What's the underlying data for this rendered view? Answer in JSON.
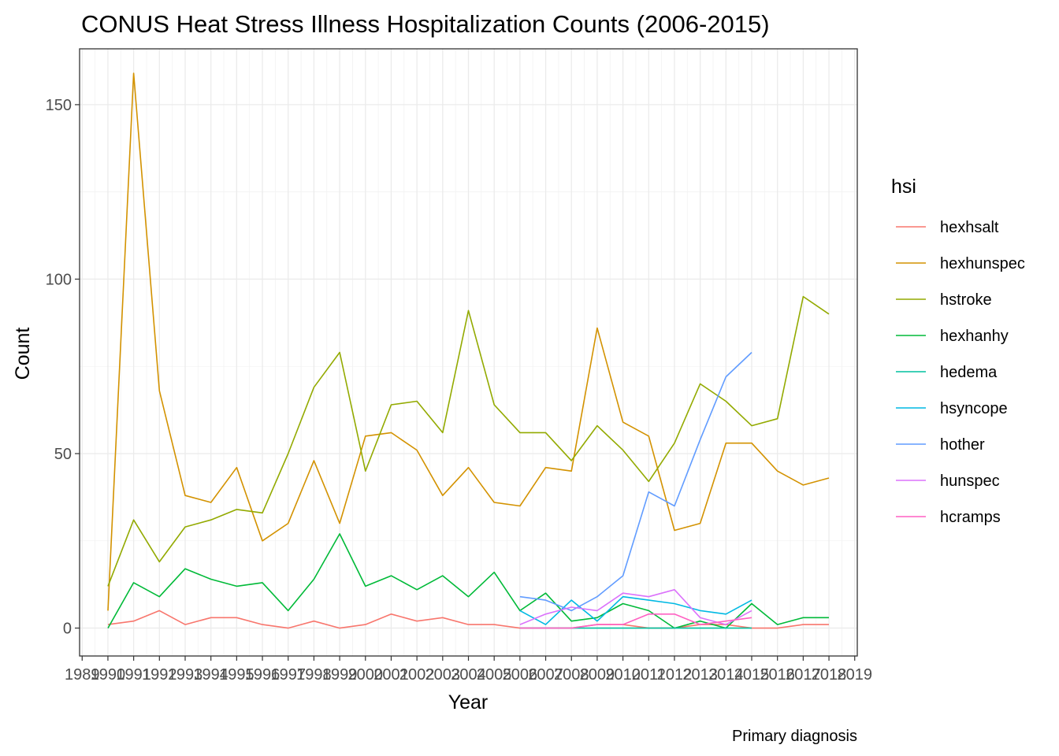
{
  "chart_data": {
    "type": "line",
    "title": "CONUS Heat Stress Illness Hospitalization Counts (2006-2015)",
    "xlabel": "Year",
    "ylabel": "Count",
    "caption": "Primary diagnosis",
    "legend_title": "hsi",
    "legend_position": "right",
    "grid": true,
    "xlim": [
      1988.9,
      2019.1
    ],
    "ylim": [
      -8,
      166
    ],
    "x_ticks": [
      1989,
      1990,
      1991,
      1992,
      1993,
      1994,
      1995,
      1996,
      1997,
      1998,
      1999,
      2000,
      2001,
      2002,
      2003,
      2004,
      2005,
      2006,
      2007,
      2008,
      2009,
      2010,
      2011,
      2012,
      2013,
      2014,
      2015,
      2016,
      2017,
      2018,
      2019
    ],
    "y_ticks": [
      0,
      50,
      100,
      150
    ],
    "series": [
      {
        "name": "hexhsalt",
        "color": "#F8766D",
        "x": [
          1990,
          1991,
          1992,
          1993,
          1994,
          1995,
          1996,
          1997,
          1998,
          1999,
          2000,
          2001,
          2002,
          2003,
          2004,
          2005,
          2006,
          2007,
          2008,
          2009,
          2010,
          2011,
          2012,
          2013,
          2014,
          2015,
          2016,
          2017,
          2018
        ],
        "y": [
          1,
          2,
          5,
          1,
          3,
          3,
          1,
          0,
          2,
          0,
          1,
          4,
          2,
          3,
          1,
          1,
          0,
          0,
          0,
          1,
          1,
          0,
          0,
          1,
          1,
          0,
          0,
          1,
          1
        ]
      },
      {
        "name": "hexhunspec",
        "color": "#D39200",
        "x": [
          1990,
          1991,
          1992,
          1993,
          1994,
          1995,
          1996,
          1997,
          1998,
          1999,
          2000,
          2001,
          2002,
          2003,
          2004,
          2005,
          2006,
          2007,
          2008,
          2009,
          2010,
          2011,
          2012,
          2013,
          2014,
          2015,
          2016,
          2017,
          2018
        ],
        "y": [
          5,
          159,
          68,
          38,
          36,
          46,
          25,
          30,
          48,
          30,
          55,
          56,
          51,
          38,
          46,
          36,
          35,
          46,
          45,
          86,
          59,
          55,
          28,
          30,
          53,
          53,
          45,
          41,
          43
        ]
      },
      {
        "name": "hstroke",
        "color": "#93AA00",
        "x": [
          1990,
          1991,
          1992,
          1993,
          1994,
          1995,
          1996,
          1997,
          1998,
          1999,
          2000,
          2001,
          2002,
          2003,
          2004,
          2005,
          2006,
          2007,
          2008,
          2009,
          2010,
          2011,
          2012,
          2013,
          2014,
          2015,
          2016,
          2017,
          2018
        ],
        "y": [
          12,
          31,
          19,
          29,
          31,
          34,
          33,
          50,
          69,
          79,
          45,
          64,
          65,
          56,
          91,
          64,
          56,
          56,
          48,
          58,
          51,
          42,
          53,
          70,
          65,
          58,
          60,
          95,
          90
        ]
      },
      {
        "name": "hexhanhy",
        "color": "#00BA38",
        "x": [
          1990,
          1991,
          1992,
          1993,
          1994,
          1995,
          1996,
          1997,
          1998,
          1999,
          2000,
          2001,
          2002,
          2003,
          2004,
          2005,
          2006,
          2007,
          2008,
          2009,
          2010,
          2011,
          2012,
          2013,
          2014,
          2015,
          2016,
          2017,
          2018
        ],
        "y": [
          0,
          13,
          9,
          17,
          14,
          12,
          13,
          5,
          14,
          27,
          12,
          15,
          11,
          15,
          9,
          16,
          5,
          10,
          2,
          3,
          7,
          5,
          0,
          2,
          0,
          7,
          1,
          3,
          3
        ]
      },
      {
        "name": "hedema",
        "color": "#00C19F",
        "x": [
          2006,
          2007,
          2008,
          2009,
          2010,
          2011,
          2012,
          2013,
          2014,
          2015
        ],
        "y": [
          0,
          0,
          0,
          0,
          0,
          0,
          0,
          0,
          0,
          0
        ]
      },
      {
        "name": "hsyncope",
        "color": "#00B9E3",
        "x": [
          2006,
          2007,
          2008,
          2009,
          2010,
          2011,
          2012,
          2013,
          2014,
          2015
        ],
        "y": [
          5,
          1,
          8,
          2,
          9,
          8,
          7,
          5,
          4,
          8
        ]
      },
      {
        "name": "hother",
        "color": "#619CFF",
        "x": [
          2006,
          2007,
          2008,
          2009,
          2010,
          2011,
          2012,
          2013,
          2014,
          2015
        ],
        "y": [
          9,
          8,
          5,
          9,
          15,
          39,
          35,
          54,
          72,
          79
        ]
      },
      {
        "name": "hunspec",
        "color": "#DB72FB",
        "x": [
          2006,
          2007,
          2008,
          2009,
          2010,
          2011,
          2012,
          2013,
          2014,
          2015
        ],
        "y": [
          1,
          4,
          6,
          5,
          10,
          9,
          11,
          3,
          1,
          5
        ]
      },
      {
        "name": "hcramps",
        "color": "#FF61C3",
        "x": [
          2006,
          2007,
          2008,
          2009,
          2010,
          2011,
          2012,
          2013,
          2014,
          2015
        ],
        "y": [
          0,
          0,
          0,
          1,
          1,
          4,
          4,
          1,
          2,
          3
        ]
      }
    ]
  }
}
